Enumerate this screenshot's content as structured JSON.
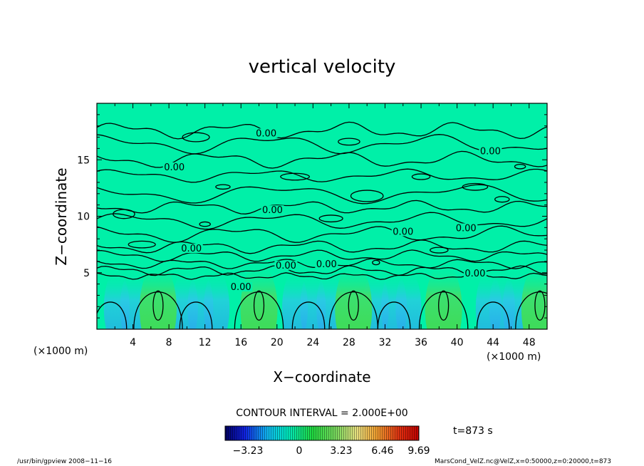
{
  "chart_data": {
    "type": "heatmap",
    "title": "vertical velocity",
    "xlabel": "X−coordinate",
    "ylabel": "Z−coordinate",
    "xlim": [
      0,
      50
    ],
    "ylim": [
      0,
      20
    ],
    "x_ticks": [
      "4",
      "8",
      "12",
      "16",
      "20",
      "24",
      "28",
      "32",
      "36",
      "40",
      "44",
      "48"
    ],
    "x_tick_values": [
      4,
      8,
      12,
      16,
      20,
      24,
      28,
      32,
      36,
      40,
      44,
      48
    ],
    "y_ticks": [
      "5",
      "10",
      "15"
    ],
    "y_tick_values": [
      5,
      10,
      15
    ],
    "x_unit_left": "(×1000 m)",
    "x_unit_right": "(×1000 m)",
    "contour_labels": [
      {
        "text": "0.00",
        "x": 18.8,
        "z": 17.2
      },
      {
        "text": "0.00",
        "x": 43.7,
        "z": 15.6
      },
      {
        "text": "0.00",
        "x": 8.6,
        "z": 14.2
      },
      {
        "text": "0.00",
        "x": 19.5,
        "z": 10.4
      },
      {
        "text": "0.00",
        "x": 34.0,
        "z": 8.5
      },
      {
        "text": "0.00",
        "x": 41.0,
        "z": 8.8
      },
      {
        "text": "0.00",
        "x": 10.5,
        "z": 7.0
      },
      {
        "text": "0.00",
        "x": 21.0,
        "z": 5.5
      },
      {
        "text": "0.00",
        "x": 25.5,
        "z": 5.6
      },
      {
        "text": "0.00",
        "x": 42.0,
        "z": 4.8
      },
      {
        "text": "0.00",
        "x": 16.0,
        "z": 3.6
      }
    ],
    "updraft_cores_x": [
      6.8,
      18.0,
      28.5,
      38.5,
      49.2
    ],
    "contour_interval": "CONTOUR INTERVAL = 2.000E+00",
    "colorbar_ticks": [
      "−3.23",
      "0",
      "3.23",
      "6.46",
      "9.69"
    ],
    "colorbar_values": [
      -3.23,
      0,
      3.23,
      6.46,
      9.69
    ],
    "time_label": "t=873 s",
    "colors": {
      "background_field": "#00F0A8",
      "updraft": "#37D84A",
      "downdraft": "#33B9F5",
      "contour": "#000000"
    }
  },
  "footer": {
    "left": "/usr/bin/gpview   2008−11−16",
    "right": "MarsCond_VelZ.nc@VelZ,x=0:50000,z=0:20000,t=873"
  }
}
